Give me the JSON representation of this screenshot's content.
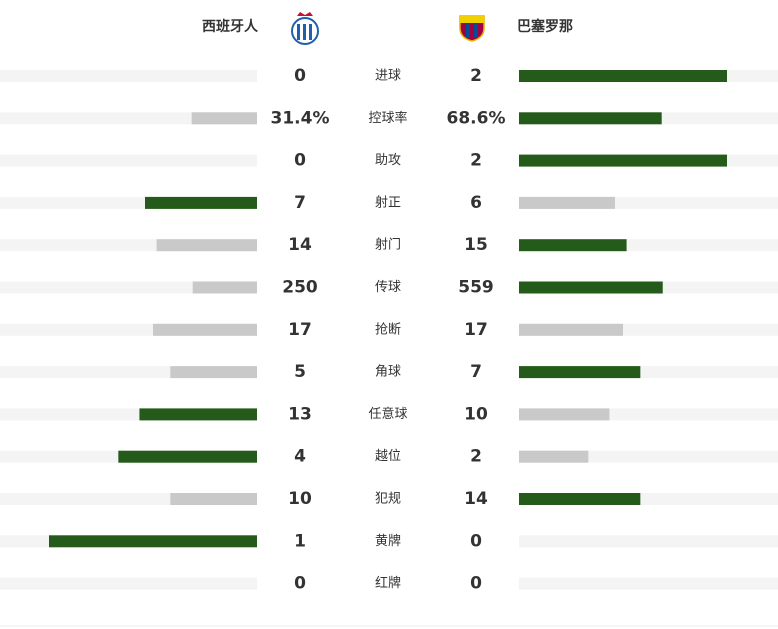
{
  "chart_data": {
    "type": "comparison-bar",
    "categories": [
      "进球",
      "控球率",
      "助攻",
      "射正",
      "射门",
      "传球",
      "抢断",
      "角球",
      "任意球",
      "越位",
      "犯规",
      "黄牌",
      "红牌"
    ],
    "series": [
      {
        "name": "西班牙人",
        "values": [
          0,
          31.4,
          0,
          7,
          14,
          250,
          17,
          5,
          13,
          4,
          10,
          1,
          0
        ],
        "value_labels": [
          "0",
          "31.4%",
          "0",
          "7",
          "14",
          "250",
          "17",
          "5",
          "13",
          "4",
          "10",
          "1",
          "0"
        ]
      },
      {
        "name": "巴塞罗那",
        "values": [
          2,
          68.6,
          2,
          6,
          15,
          559,
          17,
          7,
          10,
          2,
          14,
          0,
          0
        ],
        "value_labels": [
          "2",
          "68.6%",
          "2",
          "6",
          "15",
          "559",
          "17",
          "7",
          "10",
          "2",
          "14",
          "0",
          "0"
        ]
      }
    ],
    "leader_color": "#245b1b",
    "trailer_color": "#c9c9c9",
    "track_color": "#f4f4f4"
  }
}
